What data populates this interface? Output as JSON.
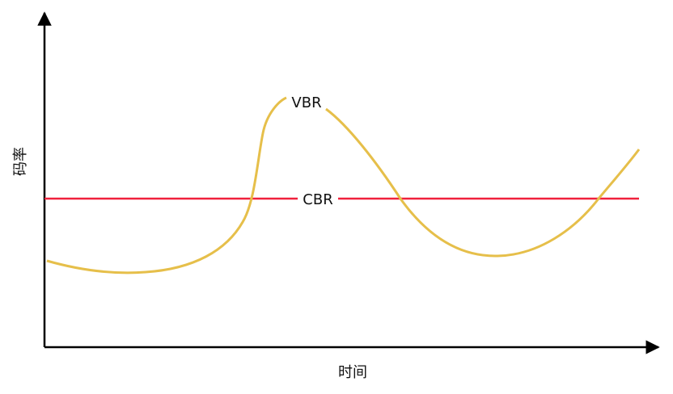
{
  "axes": {
    "y_label": "码率",
    "x_label": "时间"
  },
  "lines": {
    "vbr": "VBR",
    "cbr": "CBR"
  }
}
